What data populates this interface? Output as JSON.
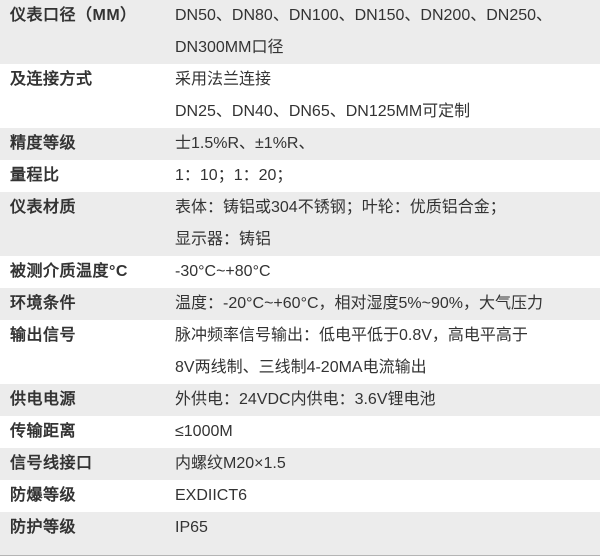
{
  "colors": {
    "row_shade": "#ececec",
    "text": "#333333",
    "bottom_edge": "#b5b5b5"
  },
  "table": {
    "rows": [
      {
        "label": "仪表口径（MM）",
        "value_lines": [
          "DN50、DN80、DN100、DN150、DN200、DN250、",
          "DN300MM口径"
        ],
        "shaded": true
      },
      {
        "label": "及连接方式",
        "value_lines": [
          "采用法兰连接",
          "DN25、DN40、DN65、DN125MM可定制"
        ],
        "shaded": false
      },
      {
        "label": "精度等级",
        "value_lines": [
          "士1.5%R、±1%R、"
        ],
        "shaded": true
      },
      {
        "label": "量程比",
        "value_lines": [
          "1：10；1：20；"
        ],
        "shaded": false
      },
      {
        "label": "仪表材质",
        "value_lines": [
          "表体：铸铝或304不锈钢；叶轮：优质铝合金；",
          "显示器：铸铝"
        ],
        "shaded": true
      },
      {
        "label": "被测介质温度°C",
        "value_lines": [
          "-30°C~+80°C"
        ],
        "shaded": false
      },
      {
        "label": "环境条件",
        "value_lines": [
          "温度：-20°C~+60°C，相对湿度5%~90%，大气压力"
        ],
        "shaded": true
      },
      {
        "label": "输出信号",
        "value_lines": [
          "脉冲频率信号输出：低电平低于0.8V，高电平高于",
          "8V两线制、三线制4-20MA电流输出"
        ],
        "shaded": false
      },
      {
        "label": "供电电源",
        "value_lines": [
          "外供电：24VDC内供电：3.6V锂电池"
        ],
        "shaded": true
      },
      {
        "label": "传输距离",
        "value_lines": [
          "≤1000M"
        ],
        "shaded": false
      },
      {
        "label": "信号线接口",
        "value_lines": [
          "内螺纹M20×1.5"
        ],
        "shaded": true
      },
      {
        "label": "防爆等级",
        "value_lines": [
          "EXDIICT6"
        ],
        "shaded": false
      },
      {
        "label": "防护等级",
        "value_lines": [
          "IP65"
        ],
        "shaded": true
      }
    ]
  }
}
